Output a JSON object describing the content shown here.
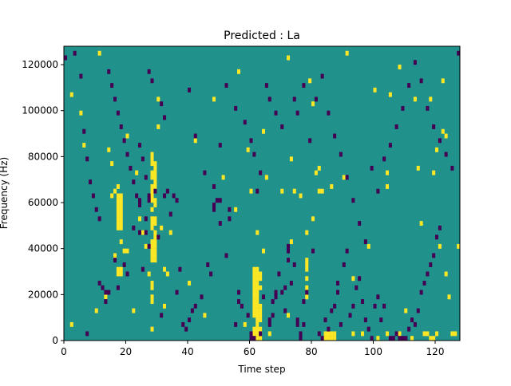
{
  "chart_data": {
    "type": "heatmap",
    "title": "Predicted : La",
    "xlabel": "Time step",
    "ylabel": "Frequency (Hz)",
    "xlim": [
      0,
      128
    ],
    "ylim": [
      0,
      128000
    ],
    "x_ticks": [
      0,
      20,
      40,
      60,
      80,
      100,
      120
    ],
    "x_tick_labels": [
      "0",
      "20",
      "40",
      "60",
      "80",
      "100",
      "120"
    ],
    "y_ticks": [
      0,
      20000,
      40000,
      60000,
      80000,
      100000,
      120000
    ],
    "y_tick_labels": [
      "0",
      "20000",
      "40000",
      "60000",
      "80000",
      "100000",
      "120000"
    ],
    "grid": false,
    "colormap": "viridis",
    "value_levels": [
      -1,
      0,
      1
    ],
    "level_colors": {
      "-1": "#440154",
      "0": "#21918c",
      "1": "#fde725"
    },
    "background_value": 0,
    "bin_width_hz": 2000,
    "cells_high": [
      [
        17,
        28000
      ],
      [
        17,
        30000
      ],
      [
        17,
        48000
      ],
      [
        17,
        50000
      ],
      [
        17,
        52000
      ],
      [
        17,
        54000
      ],
      [
        17,
        56000
      ],
      [
        17,
        58000
      ],
      [
        17,
        60000
      ],
      [
        17,
        62000
      ],
      [
        18,
        28000
      ],
      [
        18,
        30000
      ],
      [
        18,
        48000
      ],
      [
        18,
        50000
      ],
      [
        18,
        52000
      ],
      [
        18,
        54000
      ],
      [
        18,
        56000
      ],
      [
        18,
        58000
      ],
      [
        18,
        60000
      ],
      [
        18,
        62000
      ],
      [
        28,
        16000
      ],
      [
        28,
        18000
      ],
      [
        28,
        22000
      ],
      [
        28,
        24000
      ],
      [
        28,
        34000
      ],
      [
        28,
        36000
      ],
      [
        28,
        38000
      ],
      [
        28,
        40000
      ],
      [
        28,
        42000
      ],
      [
        28,
        48000
      ],
      [
        28,
        50000
      ],
      [
        28,
        52000
      ],
      [
        28,
        56000
      ],
      [
        28,
        60000
      ],
      [
        28,
        62000
      ],
      [
        28,
        64000
      ],
      [
        28,
        66000
      ],
      [
        28,
        70000
      ],
      [
        28,
        72000
      ],
      [
        28,
        76000
      ],
      [
        28,
        78000
      ],
      [
        28,
        80000
      ],
      [
        29,
        34000
      ],
      [
        29,
        36000
      ],
      [
        29,
        38000
      ],
      [
        29,
        40000
      ],
      [
        29,
        42000
      ],
      [
        29,
        44000
      ],
      [
        29,
        46000
      ],
      [
        29,
        50000
      ],
      [
        29,
        52000
      ],
      [
        29,
        58000
      ],
      [
        29,
        60000
      ],
      [
        29,
        64000
      ],
      [
        29,
        66000
      ],
      [
        29,
        68000
      ],
      [
        29,
        70000
      ],
      [
        29,
        72000
      ],
      [
        29,
        74000
      ],
      [
        29,
        76000
      ],
      [
        61,
        0
      ],
      [
        61,
        2000
      ],
      [
        61,
        4000
      ],
      [
        61,
        10000
      ],
      [
        61,
        12000
      ],
      [
        61,
        14000
      ],
      [
        61,
        16000
      ],
      [
        61,
        18000
      ],
      [
        61,
        20000
      ],
      [
        61,
        22000
      ],
      [
        61,
        24000
      ],
      [
        61,
        26000
      ],
      [
        61,
        28000
      ],
      [
        61,
        30000
      ],
      [
        62,
        0
      ],
      [
        62,
        2000
      ],
      [
        62,
        4000
      ],
      [
        62,
        6000
      ],
      [
        62,
        8000
      ],
      [
        62,
        10000
      ],
      [
        62,
        12000
      ],
      [
        62,
        14000
      ],
      [
        62,
        16000
      ],
      [
        62,
        18000
      ],
      [
        62,
        20000
      ],
      [
        62,
        22000
      ],
      [
        62,
        24000
      ],
      [
        62,
        26000
      ],
      [
        62,
        28000
      ],
      [
        62,
        30000
      ],
      [
        63,
        0
      ],
      [
        63,
        2000
      ],
      [
        63,
        4000
      ],
      [
        63,
        8000
      ],
      [
        63,
        10000
      ],
      [
        63,
        12000
      ],
      [
        63,
        14000
      ],
      [
        63,
        22000
      ],
      [
        63,
        26000
      ],
      [
        63,
        28000
      ],
      [
        78,
        18000
      ],
      [
        78,
        22000
      ],
      [
        78,
        26000
      ],
      [
        78,
        30000
      ],
      [
        78,
        32000
      ],
      [
        78,
        34000
      ],
      [
        84,
        0
      ],
      [
        84,
        2000
      ],
      [
        85,
        0
      ],
      [
        85,
        2000
      ],
      [
        86,
        0
      ],
      [
        86,
        2000
      ],
      [
        87,
        0
      ],
      [
        87,
        2000
      ],
      [
        28,
        4000
      ],
      [
        2,
        6000
      ],
      [
        10,
        12000
      ],
      [
        13,
        18000
      ],
      [
        18,
        42000
      ],
      [
        16,
        36000
      ],
      [
        19,
        38000
      ],
      [
        20,
        38000
      ],
      [
        22,
        12000
      ],
      [
        26,
        40000
      ],
      [
        27,
        28000
      ],
      [
        32,
        14000
      ],
      [
        33,
        28000
      ],
      [
        40,
        24000
      ],
      [
        45,
        10000
      ],
      [
        51,
        70000
      ],
      [
        55,
        56000
      ],
      [
        58,
        6000
      ],
      [
        60,
        64000
      ],
      [
        62,
        46000
      ],
      [
        64,
        38000
      ],
      [
        66,
        2000
      ],
      [
        72,
        10000
      ],
      [
        73,
        42000
      ],
      [
        80,
        52000
      ],
      [
        81,
        72000
      ],
      [
        82,
        64000
      ],
      [
        86,
        66000
      ],
      [
        90,
        70000
      ],
      [
        93,
        2000
      ],
      [
        96,
        2000
      ],
      [
        101,
        0
      ],
      [
        104,
        2000
      ],
      [
        104,
        72000
      ],
      [
        108,
        2000
      ],
      [
        110,
        12000
      ],
      [
        112,
        0
      ],
      [
        116,
        2000
      ],
      [
        117,
        2000
      ],
      [
        118,
        0
      ],
      [
        119,
        0
      ],
      [
        120,
        2000
      ],
      [
        121,
        40000
      ],
      [
        123,
        28000
      ],
      [
        124,
        18000
      ],
      [
        125,
        2000
      ],
      [
        126,
        2000
      ],
      [
        127,
        40000
      ],
      [
        2,
        106000
      ],
      [
        5,
        98000
      ],
      [
        6,
        84000
      ],
      [
        11,
        124000
      ],
      [
        14,
        82000
      ],
      [
        15,
        62000
      ],
      [
        15,
        76000
      ],
      [
        16,
        64000
      ],
      [
        17,
        66000
      ],
      [
        20,
        88000
      ],
      [
        23,
        72000
      ],
      [
        24,
        52000
      ],
      [
        25,
        46000
      ],
      [
        30,
        92000
      ],
      [
        30,
        104000
      ],
      [
        31,
        48000
      ],
      [
        32,
        30000
      ],
      [
        34,
        46000
      ],
      [
        42,
        86000
      ],
      [
        48,
        104000
      ],
      [
        56,
        116000
      ],
      [
        59,
        82000
      ],
      [
        64,
        90000
      ],
      [
        65,
        70000
      ],
      [
        70,
        64000
      ],
      [
        72,
        122000
      ],
      [
        73,
        78000
      ],
      [
        74,
        64000
      ],
      [
        76,
        62000
      ],
      [
        78,
        46000
      ],
      [
        79,
        112000
      ],
      [
        80,
        102000
      ],
      [
        82,
        74000
      ],
      [
        83,
        64000
      ],
      [
        91,
        124000
      ],
      [
        93,
        26000
      ],
      [
        98,
        40000
      ],
      [
        100,
        108000
      ],
      [
        104,
        66000
      ],
      [
        105,
        106000
      ],
      [
        108,
        118000
      ],
      [
        113,
        104000
      ],
      [
        114,
        74000
      ],
      [
        115,
        50000
      ],
      [
        118,
        104000
      ],
      [
        119,
        72000
      ],
      [
        120,
        82000
      ],
      [
        122,
        112000
      ],
      [
        122,
        90000
      ],
      [
        123,
        88000
      ]
    ],
    "cells_low": [
      [
        7,
        2000
      ],
      [
        13,
        16000
      ],
      [
        14,
        20000
      ],
      [
        16,
        34000
      ],
      [
        17,
        22000
      ],
      [
        19,
        32000
      ],
      [
        20,
        28000
      ],
      [
        22,
        48000
      ],
      [
        24,
        46000
      ],
      [
        24,
        58000
      ],
      [
        24,
        60000
      ],
      [
        25,
        30000
      ],
      [
        26,
        46000
      ],
      [
        26,
        52000
      ],
      [
        27,
        40000
      ],
      [
        27,
        60000
      ],
      [
        27,
        62000
      ],
      [
        29,
        64000
      ],
      [
        30,
        44000
      ],
      [
        31,
        10000
      ],
      [
        32,
        62000
      ],
      [
        33,
        64000
      ],
      [
        34,
        54000
      ],
      [
        35,
        62000
      ],
      [
        36,
        60000
      ],
      [
        36,
        20000
      ],
      [
        37,
        30000
      ],
      [
        38,
        6000
      ],
      [
        39,
        4000
      ],
      [
        40,
        8000
      ],
      [
        41,
        12000
      ],
      [
        42,
        14000
      ],
      [
        44,
        18000
      ],
      [
        46,
        32000
      ],
      [
        47,
        28000
      ],
      [
        48,
        56000
      ],
      [
        48,
        58000
      ],
      [
        49,
        60000
      ],
      [
        50,
        50000
      ],
      [
        50,
        60000
      ],
      [
        52,
        36000
      ],
      [
        53,
        52000
      ],
      [
        53,
        56000
      ],
      [
        55,
        6000
      ],
      [
        56,
        16000
      ],
      [
        56,
        20000
      ],
      [
        57,
        14000
      ],
      [
        59,
        10000
      ],
      [
        60,
        2000
      ],
      [
        60,
        0
      ],
      [
        61,
        0
      ],
      [
        62,
        64000
      ],
      [
        63,
        2000
      ],
      [
        64,
        18000
      ],
      [
        66,
        6000
      ],
      [
        66,
        8000
      ],
      [
        67,
        10000
      ],
      [
        67,
        16000
      ],
      [
        68,
        18000
      ],
      [
        68,
        20000
      ],
      [
        69,
        28000
      ],
      [
        70,
        20000
      ],
      [
        71,
        12000
      ],
      [
        71,
        22000
      ],
      [
        72,
        34000
      ],
      [
        72,
        38000
      ],
      [
        72,
        40000
      ],
      [
        73,
        24000
      ],
      [
        74,
        32000
      ],
      [
        75,
        6000
      ],
      [
        75,
        8000
      ],
      [
        76,
        2000
      ],
      [
        76,
        0
      ],
      [
        77,
        6000
      ],
      [
        77,
        16000
      ],
      [
        78,
        20000
      ],
      [
        80,
        38000
      ],
      [
        82,
        2000
      ],
      [
        83,
        0
      ],
      [
        84,
        8000
      ],
      [
        85,
        4000
      ],
      [
        86,
        12000
      ],
      [
        87,
        14000
      ],
      [
        88,
        20000
      ],
      [
        88,
        24000
      ],
      [
        89,
        6000
      ],
      [
        90,
        32000
      ],
      [
        91,
        38000
      ],
      [
        92,
        10000
      ],
      [
        93,
        14000
      ],
      [
        94,
        22000
      ],
      [
        95,
        26000
      ],
      [
        96,
        16000
      ],
      [
        97,
        8000
      ],
      [
        98,
        4000
      ],
      [
        99,
        0
      ],
      [
        100,
        14000
      ],
      [
        101,
        18000
      ],
      [
        102,
        8000
      ],
      [
        103,
        14000
      ],
      [
        105,
        0
      ],
      [
        106,
        0
      ],
      [
        107,
        2000
      ],
      [
        108,
        0
      ],
      [
        109,
        0
      ],
      [
        110,
        0
      ],
      [
        111,
        4000
      ],
      [
        112,
        8000
      ],
      [
        113,
        6000
      ],
      [
        114,
        12000
      ],
      [
        115,
        20000
      ],
      [
        116,
        24000
      ],
      [
        117,
        28000
      ],
      [
        118,
        32000
      ],
      [
        119,
        36000
      ],
      [
        120,
        44000
      ],
      [
        121,
        48000
      ],
      [
        0,
        122000
      ],
      [
        3,
        124000
      ],
      [
        5,
        114000
      ],
      [
        6,
        90000
      ],
      [
        7,
        78000
      ],
      [
        8,
        68000
      ],
      [
        9,
        62000
      ],
      [
        10,
        56000
      ],
      [
        11,
        52000
      ],
      [
        11,
        24000
      ],
      [
        12,
        22000
      ],
      [
        13,
        20000
      ],
      [
        14,
        116000
      ],
      [
        15,
        110000
      ],
      [
        16,
        104000
      ],
      [
        17,
        98000
      ],
      [
        18,
        92000
      ],
      [
        19,
        86000
      ],
      [
        20,
        80000
      ],
      [
        21,
        74000
      ],
      [
        22,
        68000
      ],
      [
        23,
        62000
      ],
      [
        24,
        84000
      ],
      [
        25,
        78000
      ],
      [
        26,
        70000
      ],
      [
        27,
        116000
      ],
      [
        28,
        112000
      ],
      [
        31,
        102000
      ],
      [
        32,
        96000
      ],
      [
        40,
        108000
      ],
      [
        42,
        88000
      ],
      [
        45,
        72000
      ],
      [
        48,
        66000
      ],
      [
        50,
        84000
      ],
      [
        52,
        110000
      ],
      [
        55,
        100000
      ],
      [
        58,
        94000
      ],
      [
        60,
        86000
      ],
      [
        61,
        80000
      ],
      [
        63,
        72000
      ],
      [
        65,
        110000
      ],
      [
        66,
        104000
      ],
      [
        68,
        98000
      ],
      [
        70,
        92000
      ],
      [
        74,
        104000
      ],
      [
        75,
        98000
      ],
      [
        77,
        110000
      ],
      [
        79,
        86000
      ],
      [
        81,
        104000
      ],
      [
        83,
        114000
      ],
      [
        85,
        98000
      ],
      [
        87,
        88000
      ],
      [
        89,
        80000
      ],
      [
        91,
        70000
      ],
      [
        93,
        60000
      ],
      [
        95,
        50000
      ],
      [
        97,
        42000
      ],
      [
        99,
        74000
      ],
      [
        101,
        64000
      ],
      [
        103,
        78000
      ],
      [
        105,
        84000
      ],
      [
        107,
        92000
      ],
      [
        109,
        100000
      ],
      [
        111,
        110000
      ],
      [
        113,
        120000
      ],
      [
        115,
        112000
      ],
      [
        117,
        100000
      ],
      [
        119,
        92000
      ],
      [
        121,
        86000
      ],
      [
        123,
        80000
      ],
      [
        125,
        74000
      ],
      [
        127,
        124000
      ]
    ]
  }
}
